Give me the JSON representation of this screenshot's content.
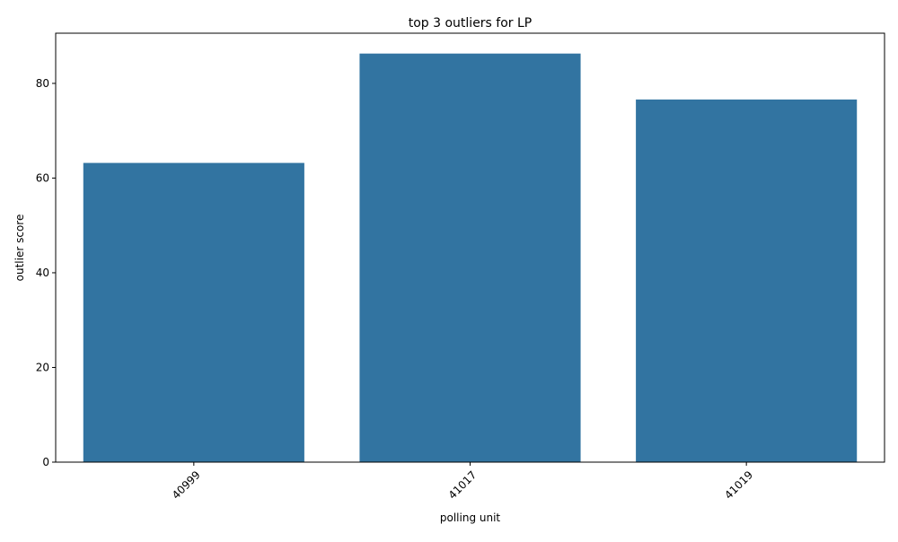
{
  "chart_data": {
    "type": "bar",
    "title": "top 3 outliers for LP",
    "xlabel": "polling unit",
    "ylabel": "outlier score",
    "categories": [
      "40999",
      "41017",
      "41019"
    ],
    "values": [
      63.2,
      86.3,
      76.6
    ],
    "ylim": [
      0,
      90.6
    ],
    "yticks": [
      0,
      20,
      40,
      60,
      80
    ],
    "grid": false,
    "legend": "none",
    "bar_color": "#3274a1",
    "x_tick_rotation_deg": 45
  }
}
